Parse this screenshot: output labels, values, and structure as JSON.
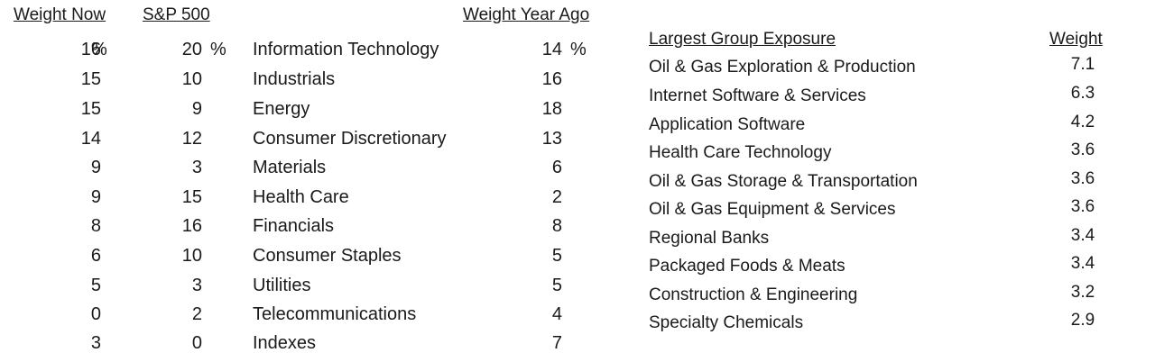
{
  "headers": {
    "weight_now": "Weight Now",
    "sp500": "S&P 500",
    "weight_year_ago": "Weight Year Ago"
  },
  "percent_sign": "%",
  "sectors": [
    {
      "now": "16",
      "sp": "20",
      "name": "Information Technology",
      "ago": "14"
    },
    {
      "now": "15",
      "sp": "10",
      "name": "Industrials",
      "ago": "16"
    },
    {
      "now": "15",
      "sp": "9",
      "name": "Energy",
      "ago": "18"
    },
    {
      "now": "14",
      "sp": "12",
      "name": "Consumer Discretionary",
      "ago": "13"
    },
    {
      "now": "9",
      "sp": "3",
      "name": "Materials",
      "ago": "6"
    },
    {
      "now": "9",
      "sp": "15",
      "name": "Health Care",
      "ago": "2"
    },
    {
      "now": "8",
      "sp": "16",
      "name": "Financials",
      "ago": "8"
    },
    {
      "now": "6",
      "sp": "10",
      "name": "Consumer Staples",
      "ago": "5"
    },
    {
      "now": "5",
      "sp": "3",
      "name": "Utilities",
      "ago": "5"
    },
    {
      "now": "0",
      "sp": "2",
      "name": "Telecommunications",
      "ago": "4"
    },
    {
      "now": "3",
      "sp": "0",
      "name": "Indexes",
      "ago": "7"
    }
  ],
  "group_exposure": {
    "header_name": "Largest Group Exposure",
    "header_weight": "Weight",
    "rows": [
      {
        "name": "Oil & Gas Exploration & Production",
        "weight": "7.1"
      },
      {
        "name": "Internet Software & Services",
        "weight": "6.3"
      },
      {
        "name": "Application Software",
        "weight": "4.2"
      },
      {
        "name": "Health Care Technology",
        "weight": "3.6"
      },
      {
        "name": "Oil & Gas Storage & Transportation",
        "weight": "3.6"
      },
      {
        "name": "Oil & Gas Equipment & Services",
        "weight": "3.6"
      },
      {
        "name": "Regional Banks",
        "weight": "3.4"
      },
      {
        "name": "Packaged Foods & Meats",
        "weight": "3.4"
      },
      {
        "name": "Construction & Engineering",
        "weight": "3.2"
      },
      {
        "name": "Specialty Chemicals",
        "weight": "2.9"
      }
    ]
  }
}
